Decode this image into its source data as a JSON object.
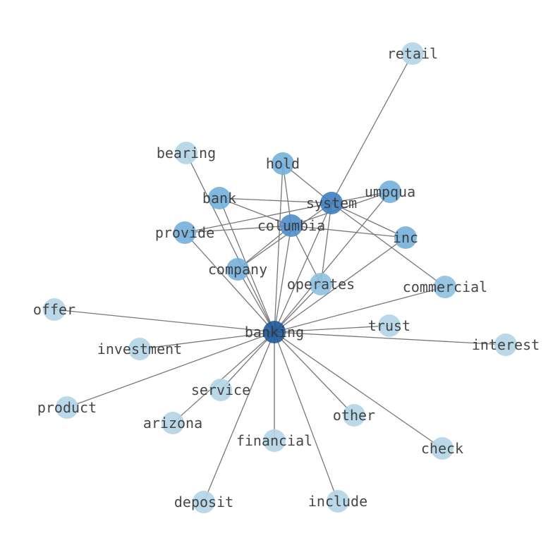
{
  "nodes": [
    {
      "id": "retail",
      "label": "retail",
      "color": "#b3d4e6"
    },
    {
      "id": "bearing",
      "label": "bearing",
      "color": "#b3d4e6"
    },
    {
      "id": "hold",
      "label": "hold",
      "color": "#74b0da"
    },
    {
      "id": "system",
      "label": "system",
      "color": "#3f80bf"
    },
    {
      "id": "umpqua",
      "label": "umpqua",
      "color": "#74b0da"
    },
    {
      "id": "bank",
      "label": "bank",
      "color": "#74b0da"
    },
    {
      "id": "provide",
      "label": "provide",
      "color": "#74b0da"
    },
    {
      "id": "columbia",
      "label": "columbia",
      "color": "#4f8ec8"
    },
    {
      "id": "inc",
      "label": "inc",
      "color": "#74b0da"
    },
    {
      "id": "company",
      "label": "company",
      "color": "#74b0da"
    },
    {
      "id": "operates",
      "label": "operates",
      "color": "#8ec1e0"
    },
    {
      "id": "commercial",
      "label": "commercial",
      "color": "#8ec1e0"
    },
    {
      "id": "offer",
      "label": "offer",
      "color": "#b3d4e6"
    },
    {
      "id": "banking",
      "label": "banking",
      "color": "#1f5a9a"
    },
    {
      "id": "trust",
      "label": "trust",
      "color": "#b3d4e6"
    },
    {
      "id": "interest",
      "label": "interest",
      "color": "#b3d4e6"
    },
    {
      "id": "investment",
      "label": "investment",
      "color": "#b3d4e6"
    },
    {
      "id": "service",
      "label": "service",
      "color": "#b3d4e6"
    },
    {
      "id": "product",
      "label": "product",
      "color": "#b3d4e6"
    },
    {
      "id": "arizona",
      "label": "arizona",
      "color": "#b3d4e6"
    },
    {
      "id": "other",
      "label": "other",
      "color": "#b3d4e6"
    },
    {
      "id": "financial",
      "label": "financial",
      "color": "#b3d4e6"
    },
    {
      "id": "check",
      "label": "check",
      "color": "#b3d4e6"
    },
    {
      "id": "deposit",
      "label": "deposit",
      "color": "#b3d4e6"
    },
    {
      "id": "include",
      "label": "include",
      "color": "#b3d4e6"
    }
  ],
  "edges": [
    [
      "system",
      "retail"
    ],
    [
      "system",
      "hold"
    ],
    [
      "system",
      "bank"
    ],
    [
      "system",
      "umpqua"
    ],
    [
      "system",
      "provide"
    ],
    [
      "system",
      "inc"
    ],
    [
      "system",
      "commercial"
    ],
    [
      "system",
      "company"
    ],
    [
      "system",
      "banking"
    ],
    [
      "system",
      "operates"
    ],
    [
      "columbia",
      "bank"
    ],
    [
      "columbia",
      "provide"
    ],
    [
      "columbia",
      "inc"
    ],
    [
      "columbia",
      "hold"
    ],
    [
      "columbia",
      "company"
    ],
    [
      "columbia",
      "operates"
    ],
    [
      "columbia",
      "banking"
    ],
    [
      "columbia",
      "umpqua"
    ],
    [
      "hold",
      "banking"
    ],
    [
      "bank",
      "banking"
    ],
    [
      "bearing",
      "banking"
    ],
    [
      "provide",
      "banking"
    ],
    [
      "company",
      "banking"
    ],
    [
      "umpqua",
      "banking"
    ],
    [
      "inc",
      "banking"
    ],
    [
      "commercial",
      "banking"
    ],
    [
      "operates",
      "banking"
    ],
    [
      "trust",
      "banking"
    ],
    [
      "interest",
      "banking"
    ],
    [
      "offer",
      "banking"
    ],
    [
      "investment",
      "banking"
    ],
    [
      "product",
      "banking"
    ],
    [
      "service",
      "banking"
    ],
    [
      "arizona",
      "banking"
    ],
    [
      "financial",
      "banking"
    ],
    [
      "deposit",
      "banking"
    ],
    [
      "include",
      "banking"
    ],
    [
      "other",
      "banking"
    ],
    [
      "check",
      "banking"
    ]
  ]
}
